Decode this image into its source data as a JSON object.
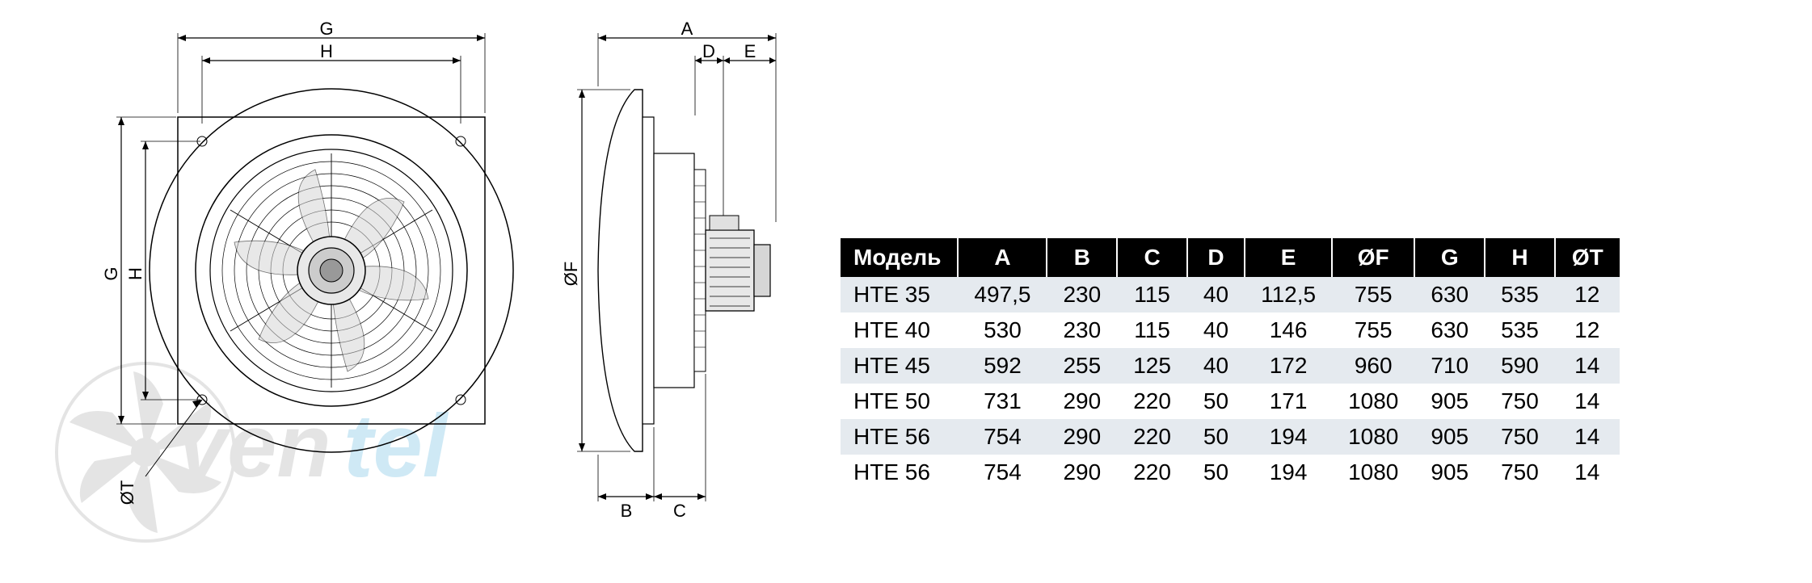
{
  "diagram": {
    "front_labels": {
      "G_top": "G",
      "H_top": "H",
      "G_left": "G",
      "H_left": "H",
      "OT": "ØT"
    },
    "side_labels": {
      "A": "A",
      "D": "D",
      "E": "E",
      "OF": "ØF",
      "B": "B",
      "C": "C"
    },
    "colors": {
      "stroke": "#000000",
      "fill_light": "#ffffff",
      "fill_gray": "#dcdcdc",
      "fill_darkgray": "#b9b9b9"
    }
  },
  "watermark": {
    "text": "ventel",
    "fan_color": "#888888",
    "text_color1": "#8a8a8a",
    "text_color2": "#2a9fd6"
  },
  "table": {
    "columns": [
      "Модель",
      "A",
      "B",
      "C",
      "D",
      "E",
      "ØF",
      "G",
      "H",
      "ØT"
    ],
    "rows": [
      [
        "HTE 35",
        "497,5",
        "230",
        "115",
        "40",
        "112,5",
        "755",
        "630",
        "535",
        "12"
      ],
      [
        "HTE 40",
        "530",
        "230",
        "115",
        "40",
        "146",
        "755",
        "630",
        "535",
        "12"
      ],
      [
        "HTE 45",
        "592",
        "255",
        "125",
        "40",
        "172",
        "960",
        "710",
        "590",
        "14"
      ],
      [
        "HTE 50",
        "731",
        "290",
        "220",
        "50",
        "171",
        "1080",
        "905",
        "750",
        "14"
      ],
      [
        "HTE 56",
        "754",
        "290",
        "220",
        "50",
        "194",
        "1080",
        "905",
        "750",
        "14"
      ],
      [
        "HTE 56",
        "754",
        "290",
        "220",
        "50",
        "194",
        "1080",
        "905",
        "750",
        "14"
      ]
    ],
    "header_bg": "#000000",
    "header_fg": "#ffffff",
    "row_alt_bg": "#e5eaef",
    "row_bg": "#ffffff",
    "fontsize": 28
  }
}
